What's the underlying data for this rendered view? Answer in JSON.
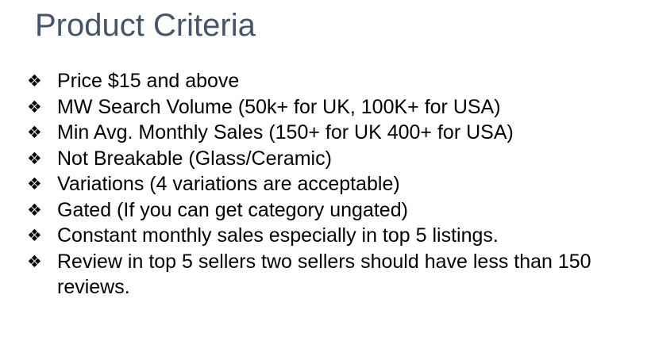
{
  "slide": {
    "title": "Product Criteria",
    "bullet_glyph": "❖",
    "bullets": [
      "Price $15 and above",
      "MW Search Volume (50k+ for UK, 100K+ for USA)",
      "Min Avg. Monthly Sales (150+ for UK 400+ for USA)",
      "Not Breakable (Glass/Ceramic)",
      "Variations (4 variations are acceptable)",
      "Gated (If you can get category ungated)",
      "Constant monthly sales especially in top 5 listings.",
      "Review in top 5 sellers two sellers should have less than 150 reviews."
    ]
  },
  "colors": {
    "title": "#44546a",
    "text": "#000000",
    "background": "#ffffff"
  },
  "icons": {
    "bullet": "diamond-bullet-icon"
  }
}
